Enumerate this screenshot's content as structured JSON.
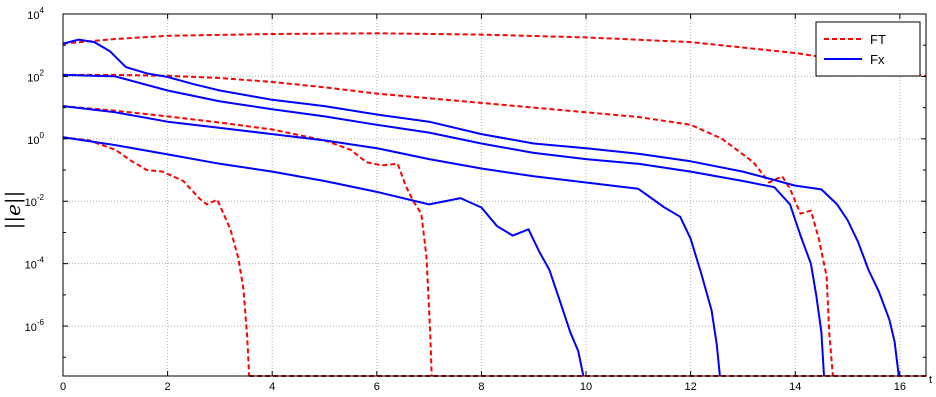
{
  "chart_data": {
    "type": "line",
    "title": "",
    "xlabel": "t",
    "ylabel": "||e||",
    "xlim": [
      0,
      16.5
    ],
    "ylim_log10": [
      -7.6,
      4
    ],
    "yscale": "log",
    "grid": true,
    "legend_position": "top-right",
    "x_ticks": [
      "0",
      "2",
      "4",
      "6",
      "8",
      "10",
      "12",
      "14",
      "16"
    ],
    "y_ticks": [
      {
        "base": "10",
        "exp": "4"
      },
      {
        "base": "10",
        "exp": "2"
      },
      {
        "base": "10",
        "exp": "0"
      },
      {
        "base": "10",
        "exp": "-2"
      },
      {
        "base": "10",
        "exp": "-4"
      },
      {
        "base": "10",
        "exp": "-6"
      }
    ],
    "colors": {
      "FT": "#ff0000",
      "Fx": "#0000ff"
    },
    "legend": [
      {
        "name": "FT",
        "style": "dashed",
        "color": "#ff0000"
      },
      {
        "name": "Fx",
        "style": "solid",
        "color": "#0000ff"
      }
    ],
    "series": [
      {
        "name": "FT",
        "style": "dashed",
        "color": "#ff0000",
        "points": [
          [
            0,
            3.05
          ],
          [
            1,
            3.2
          ],
          [
            2,
            3.3
          ],
          [
            4,
            3.36
          ],
          [
            6,
            3.38
          ],
          [
            8,
            3.34
          ],
          [
            10,
            3.25
          ],
          [
            12,
            3.1
          ],
          [
            14,
            2.75
          ],
          [
            15,
            2.5
          ],
          [
            16,
            2.2
          ],
          [
            16.5,
            2.0
          ]
        ]
      },
      {
        "name": "FT",
        "style": "dashed",
        "color": "#ff0000",
        "points": [
          [
            0,
            2.05
          ],
          [
            1,
            2.05
          ],
          [
            2,
            2.02
          ],
          [
            3,
            1.95
          ],
          [
            4,
            1.82
          ],
          [
            5,
            1.65
          ],
          [
            6,
            1.45
          ],
          [
            7,
            1.3
          ],
          [
            8,
            1.15
          ],
          [
            9,
            1.0
          ],
          [
            10,
            0.85
          ],
          [
            11,
            0.7
          ],
          [
            12,
            0.45
          ],
          [
            12.6,
            0.0
          ],
          [
            13.2,
            -0.75
          ],
          [
            13.5,
            -1.4
          ],
          [
            13.75,
            -1.2
          ],
          [
            13.9,
            -1.6
          ],
          [
            14.1,
            -2.4
          ],
          [
            14.3,
            -2.3
          ],
          [
            14.45,
            -3.2
          ],
          [
            14.6,
            -4.4
          ],
          [
            14.65,
            -6.2
          ],
          [
            14.72,
            -7.6
          ]
        ]
      },
      {
        "name": "FT",
        "style": "dashed",
        "color": "#ff0000",
        "points": [
          [
            0,
            1.05
          ],
          [
            1,
            0.9
          ],
          [
            2,
            0.72
          ],
          [
            3,
            0.52
          ],
          [
            4,
            0.3
          ],
          [
            5,
            -0.05
          ],
          [
            5.5,
            -0.35
          ],
          [
            5.8,
            -0.75
          ],
          [
            6.1,
            -0.85
          ],
          [
            6.4,
            -0.8
          ],
          [
            6.55,
            -1.5
          ],
          [
            6.7,
            -2.0
          ],
          [
            6.85,
            -2.4
          ],
          [
            6.95,
            -3.8
          ],
          [
            7.02,
            -6.2
          ],
          [
            7.05,
            -7.6
          ]
        ]
      },
      {
        "name": "FT",
        "style": "dashed",
        "color": "#ff0000",
        "points": [
          [
            0,
            0.05
          ],
          [
            0.5,
            -0.05
          ],
          [
            1,
            -0.35
          ],
          [
            1.3,
            -0.7
          ],
          [
            1.6,
            -1.0
          ],
          [
            1.9,
            -1.05
          ],
          [
            2.3,
            -1.35
          ],
          [
            2.6,
            -1.9
          ],
          [
            2.75,
            -2.1
          ],
          [
            2.95,
            -1.95
          ],
          [
            3.2,
            -2.9
          ],
          [
            3.35,
            -3.8
          ],
          [
            3.45,
            -4.8
          ],
          [
            3.52,
            -6.3
          ],
          [
            3.56,
            -7.6
          ]
        ]
      },
      {
        "name": "FT",
        "style": "dashed",
        "color": "#ff0000",
        "points": [
          [
            3.56,
            -7.6
          ],
          [
            16.5,
            -7.6
          ]
        ]
      },
      {
        "name": "Fx",
        "style": "solid",
        "color": "#0000ff",
        "points": [
          [
            0,
            3.05
          ],
          [
            0.3,
            3.18
          ],
          [
            0.6,
            3.1
          ],
          [
            0.9,
            2.8
          ],
          [
            1.2,
            2.3
          ],
          [
            1.6,
            2.1
          ],
          [
            2,
            1.98
          ],
          [
            2.5,
            1.75
          ],
          [
            3,
            1.55
          ],
          [
            4,
            1.25
          ],
          [
            5,
            1.05
          ],
          [
            6,
            0.78
          ],
          [
            7,
            0.55
          ],
          [
            8,
            0.15
          ],
          [
            9,
            -0.15
          ],
          [
            10,
            -0.3
          ],
          [
            11,
            -0.48
          ],
          [
            12,
            -0.72
          ],
          [
            13,
            -1.05
          ],
          [
            14,
            -1.5
          ],
          [
            14.5,
            -1.62
          ],
          [
            14.8,
            -2.1
          ],
          [
            15.0,
            -2.6
          ],
          [
            15.2,
            -3.3
          ],
          [
            15.4,
            -4.2
          ],
          [
            15.6,
            -4.9
          ],
          [
            15.8,
            -5.8
          ],
          [
            15.9,
            -6.5
          ],
          [
            15.98,
            -7.6
          ]
        ]
      },
      {
        "name": "Fx",
        "style": "solid",
        "color": "#0000ff",
        "points": [
          [
            0,
            2.05
          ],
          [
            1,
            2.0
          ],
          [
            2,
            1.55
          ],
          [
            3,
            1.2
          ],
          [
            4,
            0.95
          ],
          [
            5,
            0.72
          ],
          [
            6,
            0.45
          ],
          [
            7,
            0.2
          ],
          [
            8,
            -0.15
          ],
          [
            9,
            -0.45
          ],
          [
            10,
            -0.65
          ],
          [
            11,
            -0.8
          ],
          [
            12,
            -1.05
          ],
          [
            13,
            -1.35
          ],
          [
            13.6,
            -1.55
          ],
          [
            13.9,
            -2.1
          ],
          [
            14.1,
            -3.1
          ],
          [
            14.3,
            -4.0
          ],
          [
            14.4,
            -5.0
          ],
          [
            14.5,
            -6.2
          ],
          [
            14.55,
            -7.6
          ]
        ]
      },
      {
        "name": "Fx",
        "style": "solid",
        "color": "#0000ff",
        "points": [
          [
            0,
            1.05
          ],
          [
            1,
            0.85
          ],
          [
            2,
            0.55
          ],
          [
            3,
            0.35
          ],
          [
            4,
            0.15
          ],
          [
            5,
            -0.05
          ],
          [
            6,
            -0.3
          ],
          [
            7,
            -0.65
          ],
          [
            8,
            -0.95
          ],
          [
            9,
            -1.2
          ],
          [
            10,
            -1.4
          ],
          [
            11,
            -1.6
          ],
          [
            11.5,
            -2.2
          ],
          [
            11.8,
            -2.5
          ],
          [
            12.0,
            -3.2
          ],
          [
            12.2,
            -4.3
          ],
          [
            12.4,
            -5.5
          ],
          [
            12.5,
            -6.6
          ],
          [
            12.56,
            -7.6
          ]
        ]
      },
      {
        "name": "Fx",
        "style": "solid",
        "color": "#0000ff",
        "points": [
          [
            0,
            0.05
          ],
          [
            1,
            -0.2
          ],
          [
            2,
            -0.5
          ],
          [
            3,
            -0.8
          ],
          [
            4,
            -1.05
          ],
          [
            5,
            -1.35
          ],
          [
            6,
            -1.7
          ],
          [
            7,
            -2.1
          ],
          [
            7.6,
            -1.9
          ],
          [
            8.0,
            -2.2
          ],
          [
            8.3,
            -2.8
          ],
          [
            8.6,
            -3.1
          ],
          [
            8.9,
            -2.9
          ],
          [
            9.1,
            -3.6
          ],
          [
            9.3,
            -4.2
          ],
          [
            9.5,
            -5.2
          ],
          [
            9.7,
            -6.2
          ],
          [
            9.85,
            -6.8
          ],
          [
            9.95,
            -7.6
          ]
        ]
      }
    ]
  }
}
